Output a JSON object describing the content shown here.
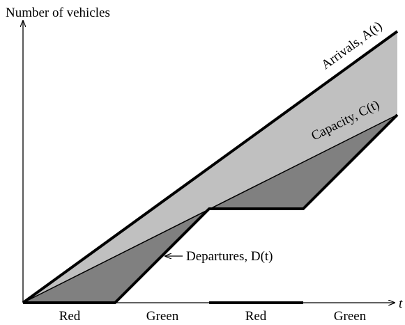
{
  "y_axis_label": "Number of vehicles",
  "x_axis_label": "t",
  "curves": {
    "arrivals": "Arrivals, A(t)",
    "capacity": "Capacity, C(t)",
    "departures": "Departures, D(t)"
  },
  "phases": [
    "Red",
    "Green",
    "Red",
    "Green"
  ]
}
